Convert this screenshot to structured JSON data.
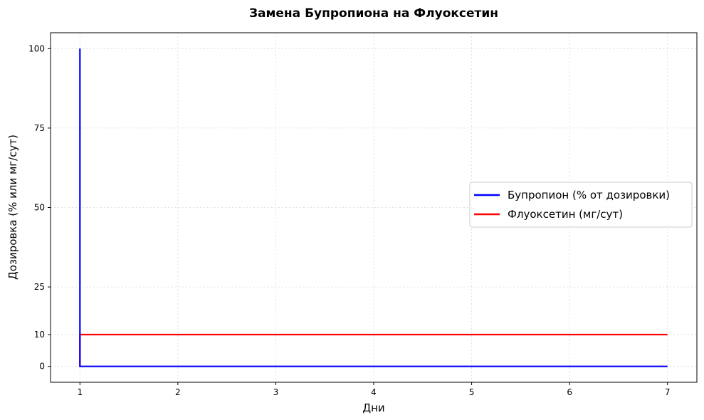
{
  "chart_data": {
    "type": "line",
    "title": "Замена Бупропиона на Флуоксетин",
    "xlabel": "Дни",
    "ylabel": "Дозировка (% или мг/сут)",
    "xlim": [
      0.7,
      7.3
    ],
    "ylim": [
      -5,
      105
    ],
    "xticks": [
      1,
      2,
      3,
      4,
      5,
      6,
      7
    ],
    "yticks": [
      0,
      10,
      25,
      50,
      75,
      100
    ],
    "grid": true,
    "legend_position": "center-right",
    "series": [
      {
        "name": "Бупропион (% от дозировки)",
        "color": "#0000ff",
        "x": [
          1,
          1,
          7
        ],
        "y": [
          100,
          0,
          0
        ]
      },
      {
        "name": "Флуоксетин (мг/сут)",
        "color": "#ff0000",
        "x": [
          1,
          1,
          7
        ],
        "y": [
          0,
          10,
          10
        ]
      }
    ]
  }
}
